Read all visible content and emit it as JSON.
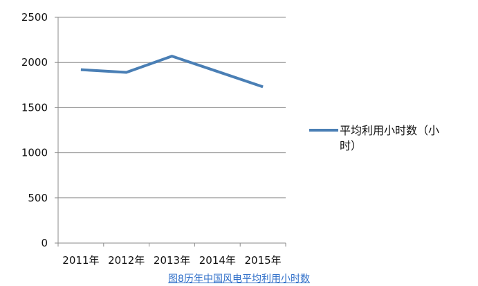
{
  "chart_data": {
    "type": "line",
    "categories": [
      "2011年",
      "2012年",
      "2013年",
      "2014年",
      "2015年"
    ],
    "series": [
      {
        "name": "平均利用小时数（小时）",
        "values": [
          1920,
          1890,
          2070,
          1900,
          1730
        ],
        "color": "#4a7fb5"
      }
    ],
    "ylim": [
      0,
      2500
    ],
    "yticks": [
      0,
      500,
      1000,
      1500,
      2000,
      2500
    ],
    "grid": true,
    "legend": "right"
  },
  "legend": {
    "line1": "平均利用小时数（小",
    "line2": "时）"
  },
  "caption": "图8历年中国风电平均利用小时数"
}
